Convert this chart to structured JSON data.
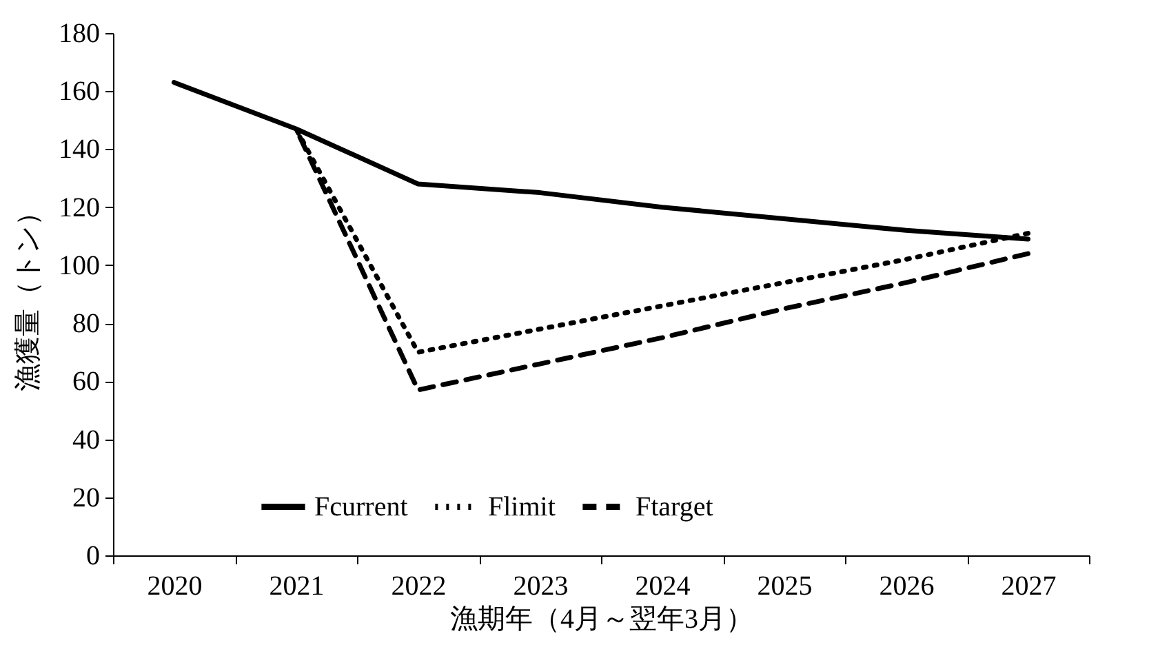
{
  "chart_data": {
    "type": "line",
    "xlabel": "漁期年（4月～翌年3月）",
    "ylabel": "漁獲量（トン）",
    "categories": [
      "2020",
      "2021",
      "2022",
      "2023",
      "2024",
      "2025",
      "2026",
      "2027"
    ],
    "series": [
      {
        "name": "Fcurrent",
        "color": "#000000",
        "line_style": "solid",
        "values": [
          163,
          147,
          128,
          125,
          120,
          116,
          112,
          109
        ]
      },
      {
        "name": "Flimit",
        "color": "#000000",
        "line_style": "dotted",
        "values": [
          null,
          147,
          70,
          78,
          86,
          94,
          102,
          111
        ]
      },
      {
        "name": "Ftarget",
        "color": "#000000",
        "line_style": "dashed",
        "values": [
          null,
          147,
          57,
          66,
          75,
          85,
          94,
          104
        ]
      }
    ],
    "ylim": [
      0,
      180
    ],
    "yticks": [
      0,
      20,
      40,
      60,
      80,
      100,
      120,
      140,
      160,
      180
    ],
    "grid": false,
    "legend": "bottom",
    "marker": "none"
  }
}
